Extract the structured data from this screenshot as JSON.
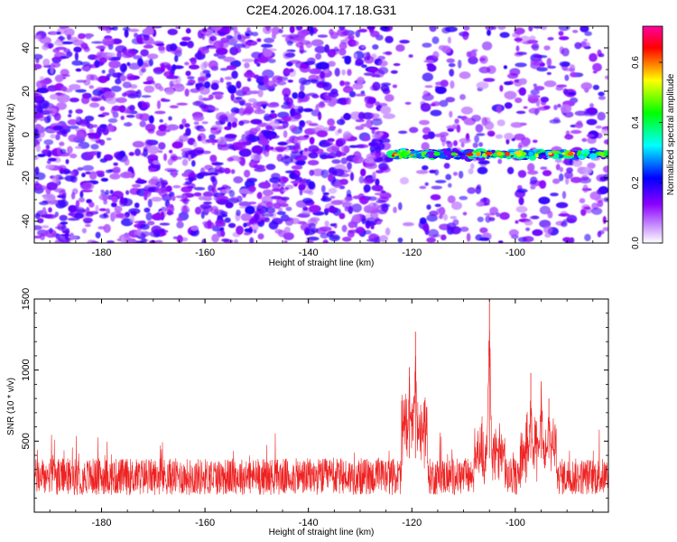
{
  "title": "C2E4.2026.004.17.18.G31",
  "chart_data": [
    {
      "type": "heatmap",
      "xlabel": "Height of straight line (km)",
      "ylabel": "Frequency (Hz)",
      "xlim": [
        -193,
        -82
      ],
      "ylim": [
        -50,
        50
      ],
      "x_ticks": [
        -180,
        -160,
        -140,
        -120,
        -100
      ],
      "y_ticks": [
        -40,
        -20,
        0,
        20,
        40
      ],
      "colorbar": {
        "label": "Normalized spectral amplitude",
        "range": [
          0.0,
          0.72
        ],
        "ticks": [
          0.0,
          0.2,
          0.4,
          0.6
        ],
        "tick_labels": [
          "0.0",
          "0.2",
          "0.4",
          "0.6"
        ],
        "colormap": [
          "#ffffff",
          "#8a00ff",
          "#0000ff",
          "#00ffff",
          "#00ff00",
          "#ffff00",
          "#ff0000",
          "#ff00a0"
        ]
      },
      "signal_band": {
        "x_range": [
          -124,
          -82
        ],
        "frequency_hz": -9,
        "peak_amplitude": 0.7
      },
      "noise_floor_amplitude": 0.15
    },
    {
      "type": "line",
      "xlabel": "Height of straight line (km)",
      "ylabel": "SNR (10 * v/v)",
      "xlim": [
        -193,
        -82
      ],
      "ylim": [
        0,
        1500
      ],
      "x_ticks": [
        -180,
        -160,
        -140,
        -120,
        -100
      ],
      "y_ticks": [
        500,
        1000,
        1500
      ],
      "line_color": "#ee2222",
      "baseline_range": [
        120,
        380
      ],
      "peaks": [
        {
          "x": -120.5,
          "y": 1020
        },
        {
          "x": -119.3,
          "y": 1270
        },
        {
          "x": -105.0,
          "y": 1500
        },
        {
          "x": -97.0,
          "y": 980
        },
        {
          "x": -95.0,
          "y": 920
        },
        {
          "x": -93.5,
          "y": 800
        }
      ]
    }
  ]
}
